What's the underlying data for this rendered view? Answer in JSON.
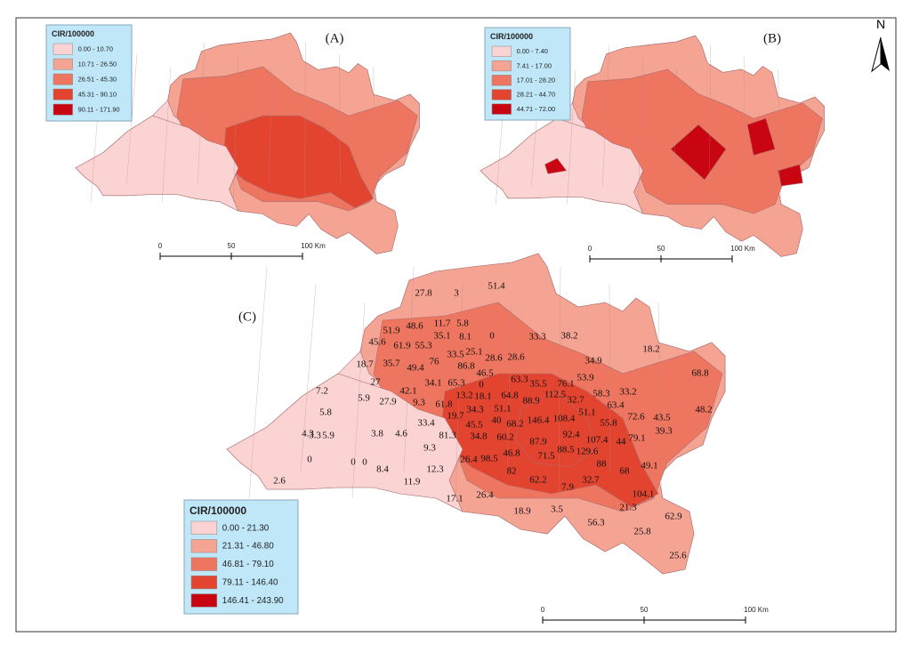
{
  "north": "N",
  "map_a": {
    "label": "(A)",
    "legend": {
      "title": "CIR/100000",
      "classes": [
        "0.00 - 10.70",
        "10.71 - 26.50",
        "26.51 - 45.30",
        "45.31 - 90.10",
        "90.11 - 171.90"
      ]
    },
    "scale": [
      "0",
      "50",
      "100 Km"
    ]
  },
  "map_b": {
    "label": "(B)",
    "legend": {
      "title": "CIR/100000",
      "classes": [
        "0.00 - 7.40",
        "7.41 - 17.00",
        "17.01 - 28.20",
        "28.21 - 44.70",
        "44.71 - 72.00"
      ]
    },
    "scale": [
      "0",
      "50",
      "100 Km"
    ]
  },
  "map_c": {
    "label": "(C)",
    "legend": {
      "title": "CIR/100000",
      "classes": [
        "0.00 - 21.30",
        "21.31 - 46.80",
        "46.81 - 79.10",
        "79.11 - 146.40",
        "146.41 - 243.90"
      ]
    },
    "scale": [
      "0",
      "50",
      "100 Km"
    ],
    "region_labels": [
      27.8,
      3,
      51.4,
      51.9,
      48.6,
      11.7,
      5.8,
      0,
      45.6,
      61.9,
      55.3,
      35.1,
      8.1,
      33.3,
      38.2,
      18.2,
      18.7,
      35.7,
      49.4,
      76,
      33.5,
      25.1,
      28.6,
      28.6,
      34.9,
      68.8,
      27,
      34.1,
      65.3,
      86.8,
      46.5,
      63.3,
      35.5,
      76.1,
      53.9,
      7.2,
      5.9,
      42.1,
      13.2,
      18.1,
      0,
      112.5,
      58.3,
      33.2,
      5.8,
      27.9,
      9.3,
      61.8,
      64.8,
      88.9,
      32.7,
      63.4,
      48.2,
      34.3,
      51.1,
      19.7,
      40,
      68.2,
      146.4,
      108.4,
      51.1,
      55.8,
      72.6,
      43.5,
      4.3,
      3.3,
      5.9,
      3.8,
      4.6,
      33.4,
      45.5,
      81.3,
      34.8,
      60.2,
      87.9,
      92.4,
      107.4,
      44,
      79.1,
      39.3,
      0,
      0,
      0,
      8.4,
      9.3,
      26.4,
      98.5,
      46.8,
      71.5,
      88.5,
      129.6,
      88,
      68,
      49.1,
      2.6,
      11.9,
      12.3,
      82,
      62.2,
      32.7,
      104.1,
      17.1,
      26.4,
      7.9,
      18.9,
      3.5,
      21.3,
      62.9,
      56.3,
      25.8,
      25.6
    ]
  }
}
